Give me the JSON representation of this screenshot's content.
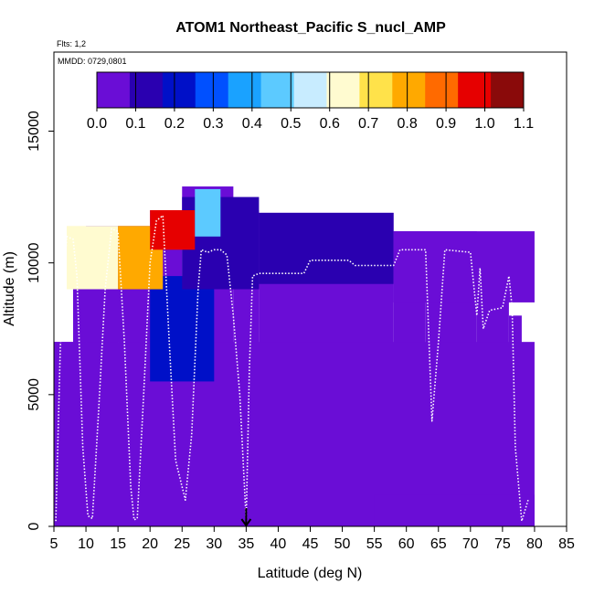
{
  "chart_data": {
    "type": "heatmap",
    "title": "ATOM1 Northeast_Pacific S_nucl_AMP",
    "flights_label": "Flts: 1,2",
    "date_label": "MMDD: 0729,0801",
    "xlabel": "Latitude (deg N)",
    "ylabel": "Altitude (m)",
    "xlim": [
      5,
      85
    ],
    "ylim": [
      0,
      18000
    ],
    "x_ticks": [
      "5",
      "10",
      "15",
      "20",
      "25",
      "30",
      "35",
      "40",
      "45",
      "50",
      "55",
      "60",
      "65",
      "70",
      "75",
      "80",
      "85"
    ],
    "y_ticks": [
      "0",
      "5000",
      "10000",
      "15000"
    ],
    "colorbar": {
      "ticks": [
        "0.0",
        "0.1",
        "0.2",
        "0.3",
        "0.4",
        "0.5",
        "0.6",
        "0.7",
        "0.8",
        "0.9",
        "1.0",
        "1.1"
      ],
      "range": [
        0,
        1.1
      ],
      "colors": [
        "#6a0dd6",
        "#2a00b0",
        "#0010c8",
        "#0050ff",
        "#1aa2ff",
        "#5ccaff",
        "#c8ecff",
        "#fffbd0",
        "#ffe24a",
        "#ffa900",
        "#ff6a00",
        "#e60000",
        "#8a0a0a"
      ]
    },
    "marker_latitude": 35,
    "altitude_columns": [
      {
        "lat0": 5,
        "lat1": 8,
        "top": 7000
      },
      {
        "lat0": 8,
        "lat1": 10,
        "top": 11300
      },
      {
        "lat0": 10,
        "lat1": 15,
        "top": 11400
      },
      {
        "lat0": 15,
        "lat1": 20,
        "top": 11400
      },
      {
        "lat0": 20,
        "lat1": 25,
        "top": 12000
      },
      {
        "lat0": 25,
        "lat1": 33,
        "top": 12900
      },
      {
        "lat0": 33,
        "lat1": 37,
        "top": 12000
      },
      {
        "lat0": 37,
        "lat1": 45,
        "top": 11900
      },
      {
        "lat0": 45,
        "lat1": 58,
        "top": 11900
      },
      {
        "lat0": 58,
        "lat1": 63,
        "top": 11200
      },
      {
        "lat0": 63,
        "lat1": 71,
        "top": 11200
      },
      {
        "lat0": 71,
        "lat1": 76,
        "top": 10600
      },
      {
        "lat0": 76,
        "lat1": 78,
        "top": 8000
      },
      {
        "lat0": 78,
        "lat1": 79,
        "top": 6100
      }
    ],
    "value_blocks": [
      {
        "lat0": 5,
        "lat1": 80,
        "alt0": 0,
        "alt1": 7000,
        "value": 0.02
      },
      {
        "lat0": 55,
        "lat1": 80,
        "alt0": 0,
        "alt1": 1200,
        "value": 0.08
      },
      {
        "lat0": 8,
        "lat1": 25,
        "alt0": 7000,
        "alt1": 9500,
        "value": 0.05
      },
      {
        "lat0": 20,
        "lat1": 30,
        "alt0": 5500,
        "alt1": 9500,
        "value": 0.18
      },
      {
        "lat0": 25,
        "lat1": 37,
        "alt0": 9000,
        "alt1": 12500,
        "value": 0.15
      },
      {
        "lat0": 37,
        "lat1": 58,
        "alt0": 9200,
        "alt1": 12000,
        "value": 0.1
      },
      {
        "lat0": 7,
        "lat1": 15,
        "alt0": 9000,
        "alt1": 11400,
        "value": 0.6
      },
      {
        "lat0": 15,
        "lat1": 22,
        "alt0": 9000,
        "alt1": 11400,
        "value": 0.8
      },
      {
        "lat0": 20,
        "lat1": 27,
        "alt0": 10500,
        "alt1": 12900,
        "value": 0.95
      },
      {
        "lat0": 27,
        "lat1": 31,
        "alt0": 11000,
        "alt1": 12800,
        "value": 0.45
      },
      {
        "lat0": 58,
        "lat1": 80,
        "alt0": 8500,
        "alt1": 11200,
        "value": 0.03
      }
    ],
    "flight_track": [
      [
        5.3,
        200
      ],
      [
        6,
        6800
      ],
      [
        7,
        11000
      ],
      [
        8,
        10900
      ],
      [
        8.6,
        9500
      ],
      [
        9.5,
        3000
      ],
      [
        10.3,
        400
      ],
      [
        11,
        300
      ],
      [
        12,
        4500
      ],
      [
        13,
        9000
      ],
      [
        14,
        11300
      ],
      [
        15,
        11200
      ],
      [
        16,
        7000
      ],
      [
        17,
        1500
      ],
      [
        17.5,
        250
      ],
      [
        18,
        300
      ],
      [
        19,
        5000
      ],
      [
        20,
        10000
      ],
      [
        21,
        11600
      ],
      [
        22,
        11800
      ],
      [
        23,
        7000
      ],
      [
        24,
        2500
      ],
      [
        25.5,
        1000
      ],
      [
        26.5,
        3500
      ],
      [
        27.5,
        9000
      ],
      [
        28,
        10500
      ],
      [
        29,
        10400
      ],
      [
        30,
        10500
      ],
      [
        31,
        10500
      ],
      [
        32,
        10300
      ],
      [
        33,
        8000
      ],
      [
        34,
        5000
      ],
      [
        35,
        200
      ],
      [
        35.5,
        6000
      ],
      [
        36,
        9500
      ],
      [
        37,
        9600
      ],
      [
        44,
        9600
      ],
      [
        45,
        10100
      ],
      [
        51,
        10100
      ],
      [
        52,
        9900
      ],
      [
        58,
        9900
      ],
      [
        59,
        10500
      ],
      [
        63,
        10500
      ],
      [
        64,
        4000
      ],
      [
        65,
        7000
      ],
      [
        66,
        10500
      ],
      [
        70,
        10400
      ],
      [
        71,
        8000
      ],
      [
        71.5,
        9800
      ],
      [
        72,
        7500
      ],
      [
        73,
        8200
      ],
      [
        75,
        8300
      ],
      [
        76,
        9500
      ],
      [
        76.5,
        8300
      ],
      [
        77,
        3000
      ],
      [
        78,
        200
      ],
      [
        79,
        1000
      ]
    ]
  }
}
